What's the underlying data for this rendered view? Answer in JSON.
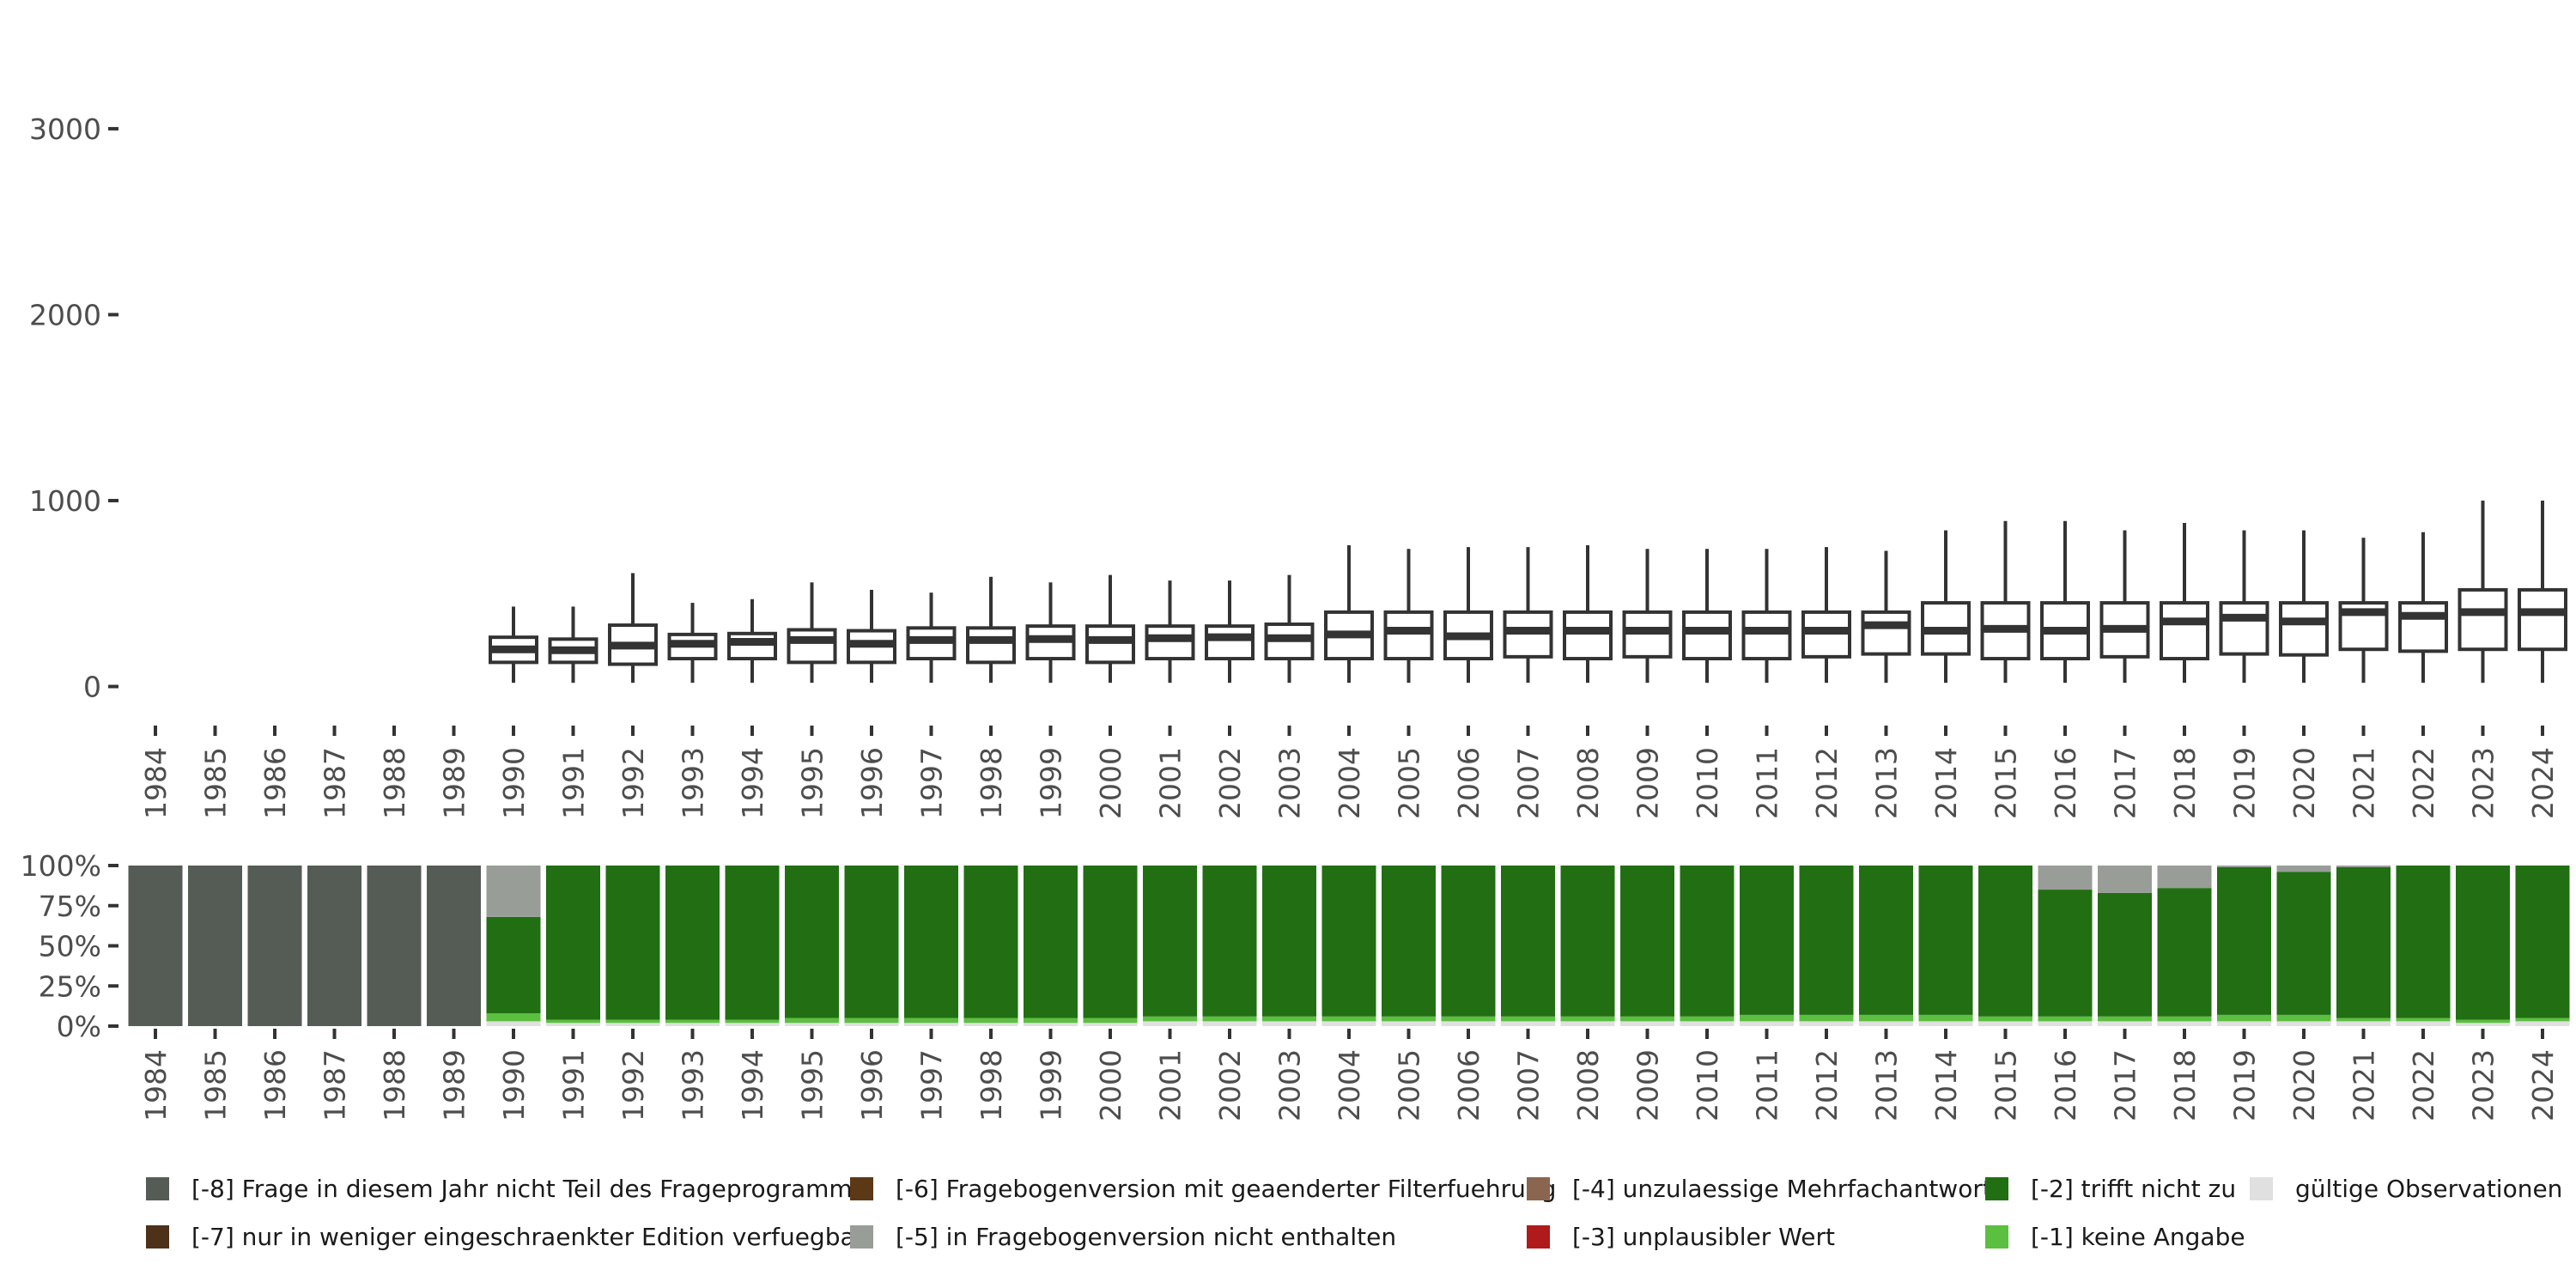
{
  "chart_data": [
    {
      "type": "boxplot",
      "x": [
        "1984",
        "1985",
        "1986",
        "1987",
        "1988",
        "1989",
        "1990",
        "1991",
        "1992",
        "1993",
        "1994",
        "1995",
        "1996",
        "1997",
        "1998",
        "1999",
        "2000",
        "2001",
        "2002",
        "2003",
        "2004",
        "2005",
        "2006",
        "2007",
        "2008",
        "2009",
        "2010",
        "2011",
        "2012",
        "2013",
        "2014",
        "2015",
        "2016",
        "2017",
        "2018",
        "2019",
        "2020",
        "2021",
        "2022",
        "2023",
        "2024"
      ],
      "yticks": [
        0,
        1000,
        2000,
        3000
      ],
      "ylim": [
        -150,
        3600
      ],
      "boxes": [
        {
          "x": "1990",
          "whisker_low": 20,
          "q1": 130,
          "median": 200,
          "q3": 265,
          "whisker_high": 430
        },
        {
          "x": "1991",
          "whisker_low": 20,
          "q1": 130,
          "median": 195,
          "q3": 255,
          "whisker_high": 430
        },
        {
          "x": "1992",
          "whisker_low": 20,
          "q1": 120,
          "median": 220,
          "q3": 330,
          "whisker_high": 610
        },
        {
          "x": "1993",
          "whisker_low": 20,
          "q1": 150,
          "median": 230,
          "q3": 280,
          "whisker_high": 450
        },
        {
          "x": "1994",
          "whisker_low": 20,
          "q1": 150,
          "median": 240,
          "q3": 285,
          "whisker_high": 470
        },
        {
          "x": "1995",
          "whisker_low": 20,
          "q1": 130,
          "median": 250,
          "q3": 305,
          "whisker_high": 560
        },
        {
          "x": "1996",
          "whisker_low": 20,
          "q1": 130,
          "median": 230,
          "q3": 300,
          "whisker_high": 520
        },
        {
          "x": "1997",
          "whisker_low": 20,
          "q1": 150,
          "median": 250,
          "q3": 315,
          "whisker_high": 505
        },
        {
          "x": "1998",
          "whisker_low": 20,
          "q1": 130,
          "median": 250,
          "q3": 315,
          "whisker_high": 590
        },
        {
          "x": "1999",
          "whisker_low": 20,
          "q1": 150,
          "median": 255,
          "q3": 325,
          "whisker_high": 560
        },
        {
          "x": "2000",
          "whisker_low": 20,
          "q1": 130,
          "median": 250,
          "q3": 325,
          "whisker_high": 600
        },
        {
          "x": "2001",
          "whisker_low": 20,
          "q1": 150,
          "median": 260,
          "q3": 325,
          "whisker_high": 570
        },
        {
          "x": "2002",
          "whisker_low": 20,
          "q1": 150,
          "median": 265,
          "q3": 325,
          "whisker_high": 570
        },
        {
          "x": "2003",
          "whisker_low": 20,
          "q1": 150,
          "median": 260,
          "q3": 335,
          "whisker_high": 600
        },
        {
          "x": "2004",
          "whisker_low": 20,
          "q1": 150,
          "median": 280,
          "q3": 400,
          "whisker_high": 760
        },
        {
          "x": "2005",
          "whisker_low": 20,
          "q1": 150,
          "median": 300,
          "q3": 400,
          "whisker_high": 740
        },
        {
          "x": "2006",
          "whisker_low": 20,
          "q1": 150,
          "median": 270,
          "q3": 400,
          "whisker_high": 750
        },
        {
          "x": "2007",
          "whisker_low": 20,
          "q1": 160,
          "median": 300,
          "q3": 400,
          "whisker_high": 750
        },
        {
          "x": "2008",
          "whisker_low": 20,
          "q1": 150,
          "median": 300,
          "q3": 400,
          "whisker_high": 760
        },
        {
          "x": "2009",
          "whisker_low": 20,
          "q1": 160,
          "median": 300,
          "q3": 400,
          "whisker_high": 740
        },
        {
          "x": "2010",
          "whisker_low": 20,
          "q1": 150,
          "median": 300,
          "q3": 400,
          "whisker_high": 740
        },
        {
          "x": "2011",
          "whisker_low": 20,
          "q1": 150,
          "median": 300,
          "q3": 400,
          "whisker_high": 740
        },
        {
          "x": "2012",
          "whisker_low": 20,
          "q1": 160,
          "median": 300,
          "q3": 400,
          "whisker_high": 750
        },
        {
          "x": "2013",
          "whisker_low": 20,
          "q1": 175,
          "median": 330,
          "q3": 400,
          "whisker_high": 730
        },
        {
          "x": "2014",
          "whisker_low": 20,
          "q1": 175,
          "median": 300,
          "q3": 450,
          "whisker_high": 840
        },
        {
          "x": "2015",
          "whisker_low": 20,
          "q1": 150,
          "median": 310,
          "q3": 450,
          "whisker_high": 890
        },
        {
          "x": "2016",
          "whisker_low": 20,
          "q1": 150,
          "median": 300,
          "q3": 450,
          "whisker_high": 890
        },
        {
          "x": "2017",
          "whisker_low": 20,
          "q1": 160,
          "median": 310,
          "q3": 450,
          "whisker_high": 840
        },
        {
          "x": "2018",
          "whisker_low": 20,
          "q1": 150,
          "median": 350,
          "q3": 450,
          "whisker_high": 880
        },
        {
          "x": "2019",
          "whisker_low": 20,
          "q1": 175,
          "median": 370,
          "q3": 450,
          "whisker_high": 840
        },
        {
          "x": "2020",
          "whisker_low": 20,
          "q1": 170,
          "median": 350,
          "q3": 450,
          "whisker_high": 840
        },
        {
          "x": "2021",
          "whisker_low": 20,
          "q1": 200,
          "median": 400,
          "q3": 450,
          "whisker_high": 800
        },
        {
          "x": "2022",
          "whisker_low": 20,
          "q1": 190,
          "median": 380,
          "q3": 450,
          "whisker_high": 830
        },
        {
          "x": "2023",
          "whisker_low": 20,
          "q1": 200,
          "median": 400,
          "q3": 520,
          "whisker_high": 1000
        },
        {
          "x": "2024",
          "whisker_low": 20,
          "q1": 200,
          "median": 400,
          "q3": 520,
          "whisker_high": 1000
        }
      ]
    },
    {
      "type": "bar",
      "stacked": true,
      "categories": [
        "1984",
        "1985",
        "1986",
        "1987",
        "1988",
        "1989",
        "1990",
        "1991",
        "1992",
        "1993",
        "1994",
        "1995",
        "1996",
        "1997",
        "1998",
        "1999",
        "2000",
        "2001",
        "2002",
        "2003",
        "2004",
        "2005",
        "2006",
        "2007",
        "2008",
        "2009",
        "2010",
        "2011",
        "2012",
        "2013",
        "2014",
        "2015",
        "2016",
        "2017",
        "2018",
        "2019",
        "2020",
        "2021",
        "2022",
        "2023",
        "2024"
      ],
      "yticks": [
        "0%",
        "25%",
        "50%",
        "75%",
        "100%"
      ],
      "ylim": [
        0,
        100
      ],
      "series": [
        {
          "name": "gültige Observationen",
          "color": "#e0e0e0",
          "values": [
            0,
            0,
            0,
            0,
            0,
            0,
            3,
            2,
            2,
            2,
            2,
            2,
            2,
            2,
            2,
            2,
            2,
            3,
            3,
            3,
            3,
            3,
            3,
            3,
            3,
            3,
            3,
            3,
            3,
            3,
            3,
            3,
            3,
            3,
            3,
            3,
            3,
            3,
            3,
            2,
            3
          ]
        },
        {
          "name": "[-1] keine Angabe",
          "color": "#5bbf3f",
          "values": [
            0,
            0,
            0,
            0,
            0,
            0,
            5,
            2,
            2,
            2,
            2,
            3,
            3,
            3,
            3,
            3,
            3,
            3,
            3,
            3,
            3,
            3,
            3,
            3,
            3,
            3,
            3,
            4,
            4,
            4,
            4,
            3,
            3,
            3,
            3,
            4,
            4,
            2,
            2,
            2,
            2
          ]
        },
        {
          "name": "[-2] trifft nicht zu",
          "color": "#216f12",
          "values": [
            0,
            0,
            0,
            0,
            0,
            0,
            60,
            96,
            96,
            96,
            96,
            95,
            95,
            95,
            95,
            95,
            95,
            94,
            94,
            94,
            94,
            94,
            94,
            94,
            94,
            94,
            94,
            93,
            93,
            93,
            93,
            94,
            79,
            77,
            80,
            92,
            89,
            94,
            95,
            96,
            95
          ]
        },
        {
          "name": "[-5] in Fragebogenversion nicht enthalten",
          "color": "#999d97",
          "values": [
            0,
            0,
            0,
            0,
            0,
            0,
            32,
            0,
            0,
            0,
            0,
            0,
            0,
            0,
            0,
            0,
            0,
            0,
            0,
            0,
            0,
            0,
            0,
            0,
            0,
            0,
            0,
            0,
            0,
            0,
            0,
            0,
            15,
            17,
            14,
            1,
            4,
            1,
            0,
            0,
            0
          ]
        },
        {
          "name": "[-8] Frage in diesem Jahr nicht Teil des Frageprogramms",
          "color": "#555b55",
          "values": [
            100,
            100,
            100,
            100,
            100,
            100,
            0,
            0,
            0,
            0,
            0,
            0,
            0,
            0,
            0,
            0,
            0,
            0,
            0,
            0,
            0,
            0,
            0,
            0,
            0,
            0,
            0,
            0,
            0,
            0,
            0,
            0,
            0,
            0,
            0,
            0,
            0,
            0,
            0,
            0,
            0
          ]
        }
      ]
    }
  ],
  "legend": {
    "items": [
      {
        "label": "[-8] Frage in diesem Jahr nicht Teil des Frageprogramms",
        "color": "#555b55"
      },
      {
        "label": "[-7] nur in weniger eingeschraenkter Edition verfuegbar",
        "color": "#4d3119"
      },
      {
        "label": "[-6] Fragebogenversion mit geaenderter Filterfuehrung",
        "color": "#5c3816"
      },
      {
        "label": "[-5] in Fragebogenversion nicht enthalten",
        "color": "#999d97"
      },
      {
        "label": "[-4] unzulaessige Mehrfachantwort",
        "color": "#8a6650"
      },
      {
        "label": "[-3] unplausibler Wert",
        "color": "#b01a1a"
      },
      {
        "label": "[-2] trifft nicht zu",
        "color": "#216f12"
      },
      {
        "label": "[-1] keine Angabe",
        "color": "#5bbf3f"
      },
      {
        "label": "gültige Observationen",
        "color": "#e0e0e0"
      }
    ]
  }
}
